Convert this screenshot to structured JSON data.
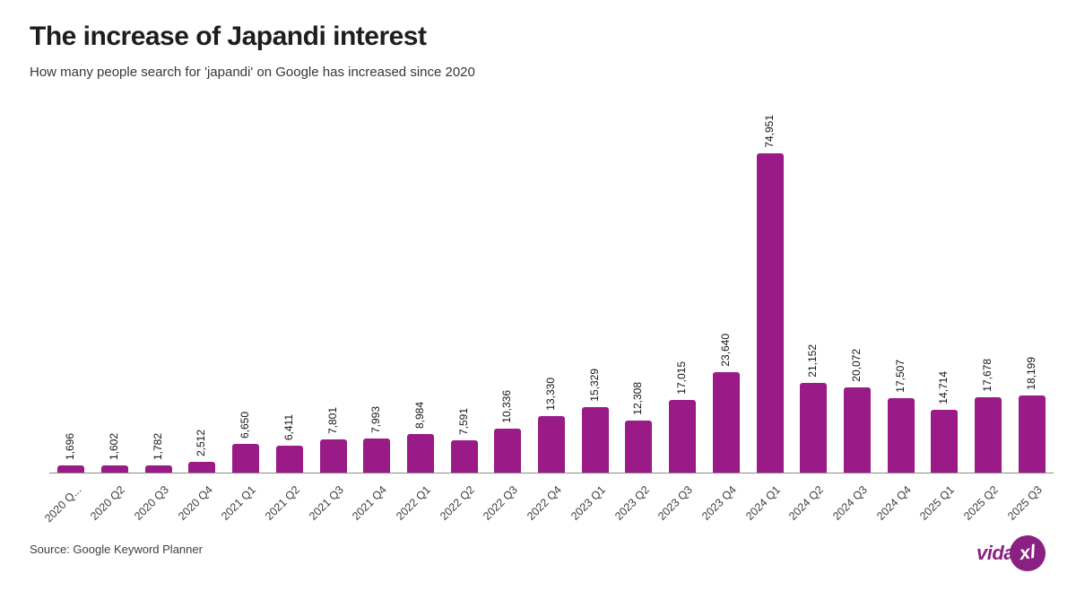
{
  "header": {
    "title": "The increase of Japandi interest",
    "subtitle": "How many people search for 'japandi' on Google has increased since 2020"
  },
  "chart_data": {
    "type": "bar",
    "categories": [
      "2020 Q...",
      "2020 Q2",
      "2020 Q3",
      "2020 Q4",
      "2021 Q1",
      "2021 Q2",
      "2021 Q3",
      "2021 Q4",
      "2022 Q1",
      "2022 Q2",
      "2022 Q3",
      "2022 Q4",
      "2023 Q1",
      "2023 Q2",
      "2023 Q3",
      "2023 Q4",
      "2024 Q1",
      "2024 Q2",
      "2024 Q3",
      "2024 Q4",
      "2025 Q1",
      "2025 Q2",
      "2025 Q3"
    ],
    "values": [
      1696,
      1602,
      1782,
      2512,
      6650,
      6411,
      7801,
      7993,
      8984,
      7591,
      10336,
      13330,
      15329,
      12308,
      17015,
      23640,
      74951,
      21152,
      20072,
      17507,
      14714,
      17678,
      18199
    ],
    "value_labels": [
      "1,696",
      "1,602",
      "1,782",
      "2,512",
      "6,650",
      "6,411",
      "7,801",
      "7,993",
      "8,984",
      "7,591",
      "10,336",
      "13,330",
      "15,329",
      "12,308",
      "17,015",
      "23,640",
      "74,951",
      "21,152",
      "20,072",
      "17,507",
      "14,714",
      "17,678",
      "18,199"
    ],
    "title": "The increase of Japandi interest",
    "xlabel": "",
    "ylabel": "",
    "ylim": [
      0,
      74951
    ],
    "grid": false,
    "legend": "none",
    "value_label_rotation": -90,
    "category_label_rotation": -45
  },
  "footer": {
    "source": "Source: Google Keyword Planner",
    "logo_text": "vida",
    "logo_badge": "xl"
  },
  "colors": {
    "bar": "#9A1B87",
    "brand": "#8A2082",
    "title_text": "#1e1e1e",
    "subtitle_text": "#373737",
    "axis_line": "#8a8a8a",
    "value_label_text": "#141414",
    "category_label_text": "#3f3f3f"
  }
}
